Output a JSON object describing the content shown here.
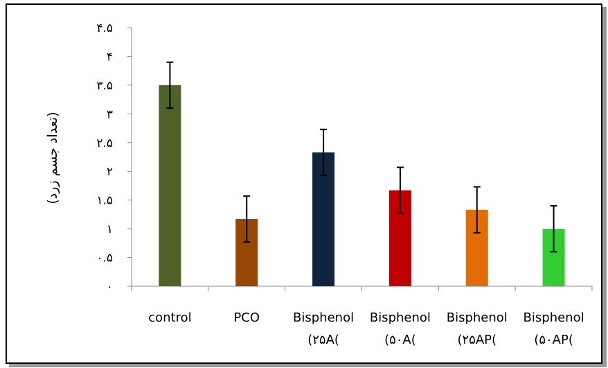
{
  "chart_data": {
    "type": "bar",
    "title": "",
    "xlabel": "",
    "ylabel": "(تعداد جسم زرد)",
    "ylim": [
      0,
      4.5
    ],
    "yticks": [
      {
        "value": 0,
        "label": "۰"
      },
      {
        "value": 0.5,
        "label": "۰.۵"
      },
      {
        "value": 1,
        "label": "۱"
      },
      {
        "value": 1.5,
        "label": "۱.۵"
      },
      {
        "value": 2,
        "label": "۲"
      },
      {
        "value": 2.5,
        "label": "۲.۵"
      },
      {
        "value": 3,
        "label": "۳"
      },
      {
        "value": 3.5,
        "label": "۳.۵"
      },
      {
        "value": 4,
        "label": "۴"
      },
      {
        "value": 4.5,
        "label": "۴.۵"
      }
    ],
    "categories": [
      {
        "line1": "control",
        "line2": ""
      },
      {
        "line1": "PCO",
        "line2": ""
      },
      {
        "line1": "Bisphenol",
        "line2": "(۲۵A("
      },
      {
        "line1": "Bisphenol",
        "line2": "(۵۰A("
      },
      {
        "line1": "Bisphenol",
        "line2": "(۲۵AP("
      },
      {
        "line1": "Bisphenol",
        "line2": "(۵۰AP("
      }
    ],
    "values": [
      3.5,
      1.17,
      2.33,
      1.67,
      1.33,
      1.0
    ],
    "errors": [
      0.4,
      0.4,
      0.4,
      0.4,
      0.4,
      0.4
    ],
    "colors": [
      "#4f6228",
      "#974806",
      "#10243e",
      "#c00000",
      "#e36c09",
      "#33cc33"
    ],
    "grid": false,
    "legend": "none"
  }
}
